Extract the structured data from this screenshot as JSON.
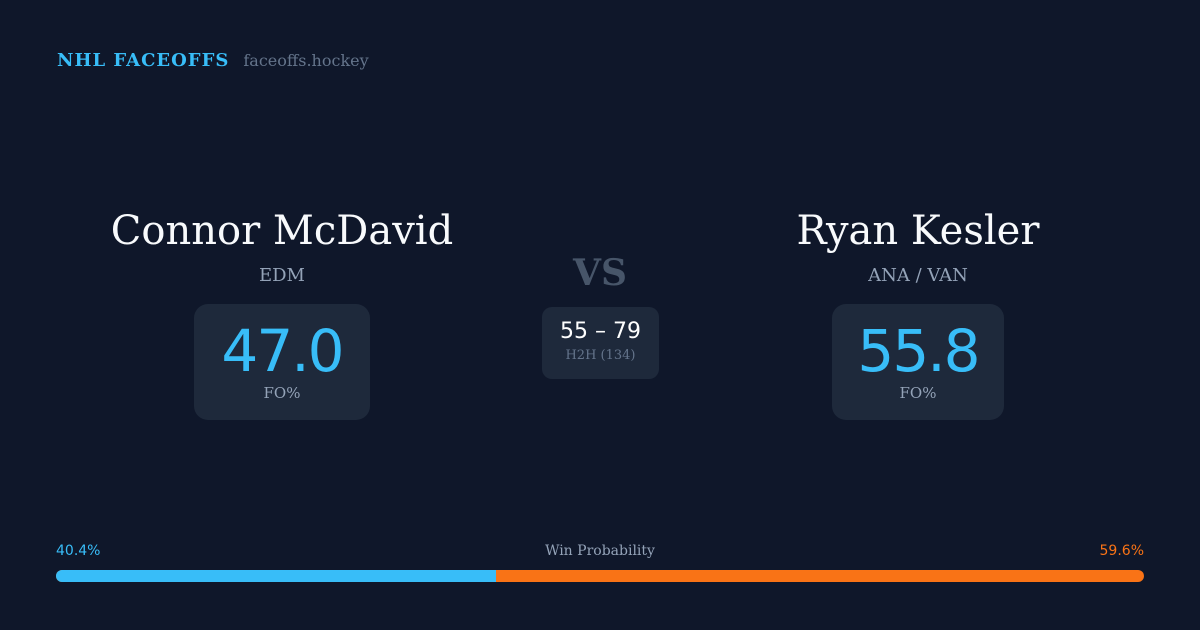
{
  "brand": {
    "title": "NHL FACEOFFS",
    "url": "faceoffs.hockey"
  },
  "left": {
    "name": "Connor McDavid",
    "team": "EDM",
    "value": "47.0",
    "label": "FO%"
  },
  "right": {
    "name": "Ryan Kesler",
    "team": "ANA / VAN",
    "value": "55.8",
    "label": "FO%"
  },
  "vs": "VS",
  "h2h": {
    "score": "55 – 79",
    "label": "H2H (134)"
  },
  "win_probability": {
    "label": "Win Probability",
    "left": "40.4%",
    "right": "59.6%",
    "left_fraction": 0.404,
    "left_color": "#38bdf8",
    "right_color": "#f97316"
  }
}
